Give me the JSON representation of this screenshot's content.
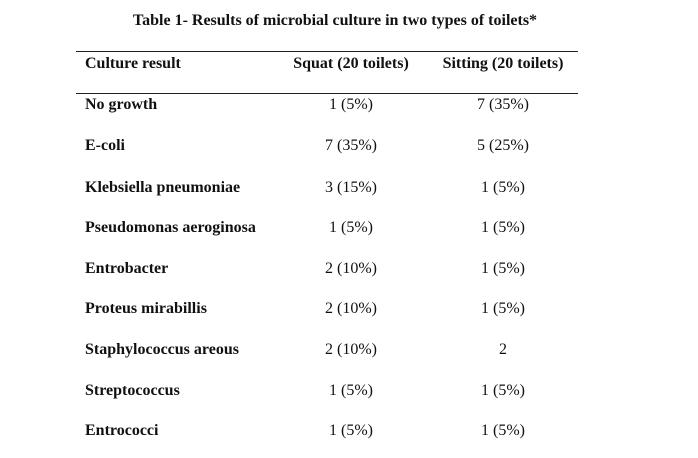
{
  "caption": "Table 1- Results of microbial culture in two types of toilets*",
  "table": {
    "headers": [
      "Culture result",
      "Squat (20 toilets)",
      "Sitting (20 toilets)"
    ],
    "rows": [
      [
        "No growth",
        "1 (5%)",
        "7 (35%)"
      ],
      [
        "E-coli",
        "7 (35%)",
        "5 (25%)"
      ],
      [
        "Klebsiella pneumoniae",
        "3 (15%)",
        "1 (5%)"
      ],
      [
        "Pseudomonas aeroginosa",
        "1 (5%)",
        "1 (5%)"
      ],
      [
        "Entrobacter",
        "2 (10%)",
        "1 (5%)"
      ],
      [
        "Proteus mirabillis",
        "2 (10%)",
        "1 (5%)"
      ],
      [
        "Staphylococcus areous",
        "2 (10%)",
        "2"
      ],
      [
        "Streptococcus",
        "1 (5%)",
        "1 (5%)"
      ],
      [
        "Entrococci",
        "1 (5%)",
        "1 (5%)"
      ]
    ]
  }
}
